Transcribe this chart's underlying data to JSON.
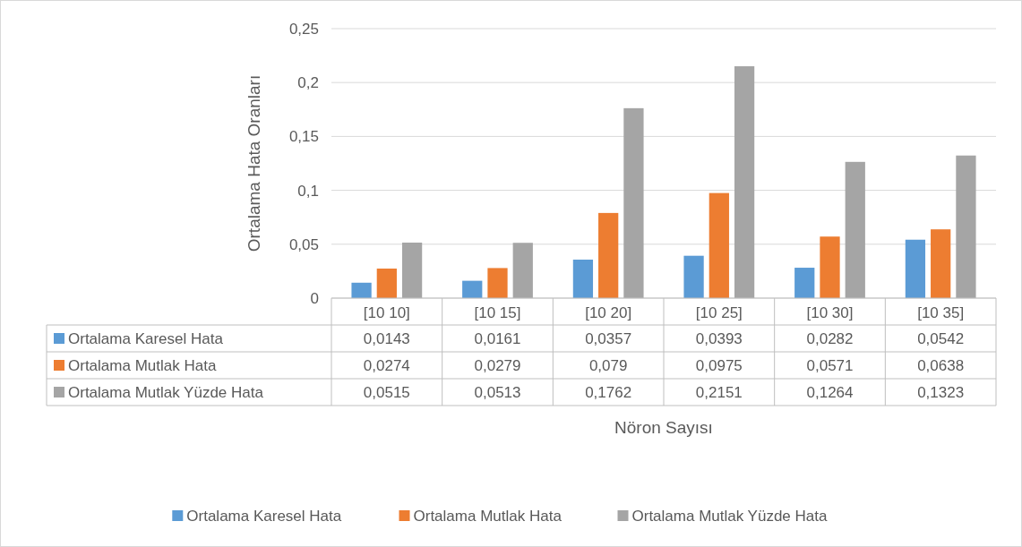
{
  "chart_data": {
    "type": "bar",
    "annotations": [
      "Nöron Sayısı"
    ],
    "ylabel": "Ortalama Hata Oranları",
    "categories": [
      "[10 10]",
      "[10 15]",
      "[10 20]",
      "[10 25]",
      "[10 30]",
      "[10 35]"
    ],
    "series": [
      {
        "name": "Ortalama Karesel Hata",
        "color": "#5b9bd5",
        "values": [
          0.0143,
          0.0161,
          0.0357,
          0.0393,
          0.0282,
          0.0542
        ],
        "value_labels": [
          "0,0143",
          "0,0161",
          "0,0357",
          "0,0393",
          "0,0282",
          "0,0542"
        ]
      },
      {
        "name": "Ortalama Mutlak Hata",
        "color": "#ed7d31",
        "values": [
          0.0274,
          0.0279,
          0.079,
          0.0975,
          0.0571,
          0.0638
        ],
        "value_labels": [
          "0,0274",
          "0,0279",
          "0,079",
          "0,0975",
          "0,0571",
          "0,0638"
        ]
      },
      {
        "name": "Ortalama Mutlak Yüzde Hata",
        "color": "#a5a5a5",
        "values": [
          0.0515,
          0.0513,
          0.1762,
          0.2151,
          0.1264,
          0.1323
        ],
        "value_labels": [
          "0,0515",
          "0,0513",
          "0,1762",
          "0,2151",
          "0,1264",
          "0,1323"
        ]
      }
    ],
    "ylim": [
      0,
      0.25
    ],
    "yticks": [
      {
        "value": 0,
        "label": "0"
      },
      {
        "value": 0.05,
        "label": "0,05"
      },
      {
        "value": 0.1,
        "label": "0,1"
      },
      {
        "value": 0.15,
        "label": "0,15"
      },
      {
        "value": 0.2,
        "label": "0,2"
      },
      {
        "value": 0.25,
        "label": "0,25"
      }
    ],
    "grid": "y",
    "legend": "bottom"
  }
}
